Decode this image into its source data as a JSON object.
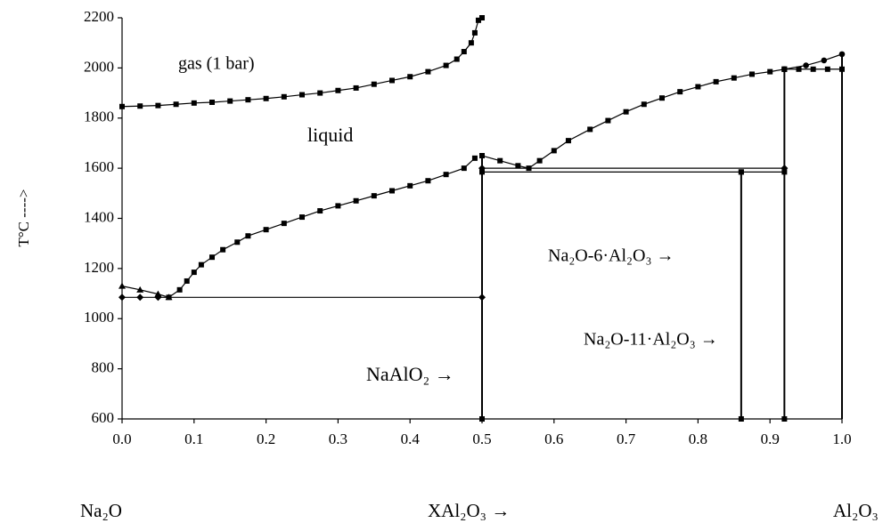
{
  "chart_data": {
    "type": "line",
    "ylabel": "T°C ---->",
    "xlim": [
      0,
      1
    ],
    "ylim": [
      600,
      2200
    ],
    "xticks": [
      {
        "value": 0,
        "label": "0.0"
      },
      {
        "value": 0.1,
        "label": "0.1"
      },
      {
        "value": 0.2,
        "label": "0.2"
      },
      {
        "value": 0.3,
        "label": "0.3"
      },
      {
        "value": 0.4,
        "label": "0.4"
      },
      {
        "value": 0.5,
        "label": "0.5"
      },
      {
        "value": 0.6,
        "label": "0.6"
      },
      {
        "value": 0.7,
        "label": "0.7"
      },
      {
        "value": 0.8,
        "label": "0.8"
      },
      {
        "value": 0.9,
        "label": "0.9"
      },
      {
        "value": 1,
        "label": "1.0"
      }
    ],
    "yticks": [
      600,
      800,
      1000,
      1200,
      1400,
      1600,
      1800,
      2000,
      2200
    ],
    "color": "#000000",
    "series": [
      {
        "marker": "square",
        "x": [
          0,
          0.025,
          0.05,
          0.075,
          0.1,
          0.125,
          0.15,
          0.175,
          0.2,
          0.225,
          0.25,
          0.275,
          0.3,
          0.325,
          0.35,
          0.375,
          0.4,
          0.425,
          0.45,
          0.465,
          0.475,
          0.485,
          0.49,
          0.495,
          0.5
        ],
        "values": [
          1846,
          1848,
          1850,
          1855,
          1860,
          1863,
          1868,
          1873,
          1878,
          1885,
          1893,
          1900,
          1910,
          1920,
          1935,
          1950,
          1965,
          1985,
          2010,
          2035,
          2065,
          2100,
          2140,
          2190,
          2200
        ]
      },
      {
        "marker": "triangle",
        "x": [
          0,
          0.025,
          0.05,
          0.065
        ],
        "values": [
          1130,
          1115,
          1098,
          1085
        ]
      },
      {
        "marker": "square",
        "x": [
          0.065,
          0.08,
          0.09,
          0.1,
          0.11,
          0.125,
          0.14,
          0.16,
          0.175,
          0.2,
          0.225,
          0.25,
          0.275,
          0.3,
          0.325,
          0.35,
          0.375,
          0.4,
          0.425,
          0.45,
          0.475,
          0.49
        ],
        "values": [
          1085,
          1115,
          1150,
          1185,
          1215,
          1245,
          1275,
          1305,
          1330,
          1355,
          1380,
          1405,
          1430,
          1450,
          1470,
          1490,
          1510,
          1530,
          1550,
          1575,
          1600,
          1640
        ]
      },
      {
        "marker": "square",
        "x": [
          0.5,
          0.525,
          0.55,
          0.565,
          0.58,
          0.6,
          0.62,
          0.65,
          0.675,
          0.7,
          0.725,
          0.75,
          0.775,
          0.8,
          0.825,
          0.85,
          0.875,
          0.9,
          0.92
        ],
        "values": [
          1650,
          1630,
          1610,
          1600,
          1630,
          1670,
          1710,
          1755,
          1790,
          1825,
          1855,
          1880,
          1905,
          1925,
          1945,
          1960,
          1975,
          1985,
          1995
        ]
      },
      {
        "marker": "circle",
        "x": [
          0.92,
          0.95,
          0.975,
          1
        ],
        "values": [
          1995,
          2010,
          2030,
          2055
        ]
      },
      {
        "marker": "square",
        "x": [
          0.92,
          0.94,
          0.96,
          0.98,
          1
        ],
        "values": [
          1995,
          1995,
          1995,
          1995,
          1995
        ]
      },
      {
        "marker": "diamond",
        "x": [
          0,
          0.025,
          0.05,
          0.5
        ],
        "values": [
          1085,
          1085,
          1085,
          1085
        ]
      },
      {
        "marker": "diamond",
        "x": [
          0.5,
          0.92
        ],
        "values": [
          1600,
          1600
        ]
      },
      {
        "marker": "square",
        "x": [
          0.5,
          0.86,
          0.92
        ],
        "values": [
          1585,
          1585,
          1585
        ]
      },
      {
        "marker": "square",
        "x": [
          0.5,
          0.5
        ],
        "values": [
          600,
          1650
        ]
      },
      {
        "marker": "square",
        "x": [
          0.86,
          0.86
        ],
        "values": [
          600,
          1585
        ]
      },
      {
        "marker": "square",
        "x": [
          0.92,
          0.92
        ],
        "values": [
          600,
          1995
        ]
      },
      {
        "marker": "none",
        "x": [
          1,
          1
        ],
        "values": [
          600,
          2055
        ]
      }
    ],
    "annotations": [
      "gas (1 bar)",
      "liquid",
      "Na₂O-6·Al₂O₃ →",
      "Na₂O-11·Al₂O₃ →",
      "NaAlO₂ →",
      "Na₂O",
      "XAl₂O₃ →",
      "Al₂O₃"
    ]
  }
}
